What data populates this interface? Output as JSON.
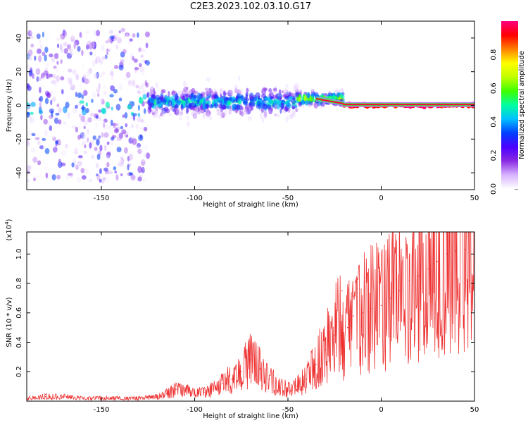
{
  "title": "C2E3.2023.102.03.10.G17",
  "chart_data": [
    {
      "type": "heatmap",
      "panel": "spectrogram",
      "xlabel": "Height of straight line (km)",
      "ylabel": "Frequency (Hz)",
      "xlim": [
        -190,
        50
      ],
      "ylim": [
        -50,
        50
      ],
      "xticks": [
        -150,
        -100,
        -50,
        0,
        50
      ],
      "yticks": [
        -40,
        -20,
        0,
        20,
        40
      ],
      "colorbar": {
        "label": "Normalized spectral amplitude",
        "range": [
          0.0,
          1.0
        ],
        "ticks": [
          0.0,
          0.2,
          0.4,
          0.6,
          0.8
        ],
        "colormap": [
          "#ffffff",
          "#d8b4ff",
          "#8a2be2",
          "#4b00ff",
          "#0040ff",
          "#00c0ff",
          "#00ffa0",
          "#40ff00",
          "#c0ff00",
          "#ffff00",
          "#ff8000",
          "#ff0000",
          "#ff0080"
        ]
      },
      "features": [
        {
          "description_label": "",
          "x_range": [
            -190,
            -125
          ],
          "freq_center": 0,
          "spread": 45,
          "max_amplitude": 0.35
        },
        {
          "x_range": [
            -125,
            -45
          ],
          "freq_center": 2,
          "spread": 8,
          "max_amplitude": 0.55
        },
        {
          "x_range": [
            -45,
            -20
          ],
          "freq_center": 4,
          "spread": 4,
          "max_amplitude": 0.75
        },
        {
          "x_range": [
            -20,
            50
          ],
          "freq_center": 0,
          "spread": 1,
          "max_amplitude": 1.0
        }
      ]
    },
    {
      "type": "line",
      "panel": "snr",
      "xlabel": "Height of straight line (km)",
      "ylabel": "SNR (10 * v/v)",
      "exponent_label": "(x10",
      "exponent_power": "4",
      "xlim": [
        -190,
        50
      ],
      "ylim": [
        0.0,
        1.15
      ],
      "xticks": [
        -150,
        -100,
        -50,
        0,
        50
      ],
      "yticks": [
        0.2,
        0.4,
        0.6,
        0.8,
        1.0
      ],
      "color": "#ee3333",
      "series": [
        {
          "x": [
            -190,
            -180,
            -170,
            -160,
            -150,
            -140,
            -130,
            -120,
            -115,
            -110,
            -105,
            -100,
            -95,
            -90,
            -85,
            -80,
            -75,
            -70,
            -65,
            -60,
            -55,
            -50,
            -45,
            -40,
            -35,
            -30,
            -25,
            -22,
            -21,
            -20,
            -18,
            -15,
            -10,
            -5,
            0,
            5,
            10,
            15,
            20,
            25,
            30,
            35,
            40,
            45,
            50
          ],
          "y": [
            0.02,
            0.03,
            0.03,
            0.02,
            0.02,
            0.02,
            0.02,
            0.03,
            0.05,
            0.08,
            0.07,
            0.05,
            0.06,
            0.08,
            0.12,
            0.15,
            0.2,
            0.28,
            0.22,
            0.15,
            0.1,
            0.08,
            0.1,
            0.15,
            0.25,
            0.35,
            0.45,
            0.6,
            0.75,
            0.3,
            0.5,
            0.58,
            0.6,
            0.63,
            0.65,
            0.7,
            0.75,
            0.82,
            0.85,
            0.9,
            0.95,
            1.0,
            1.02,
            1.03,
            1.04
          ]
        }
      ]
    }
  ]
}
